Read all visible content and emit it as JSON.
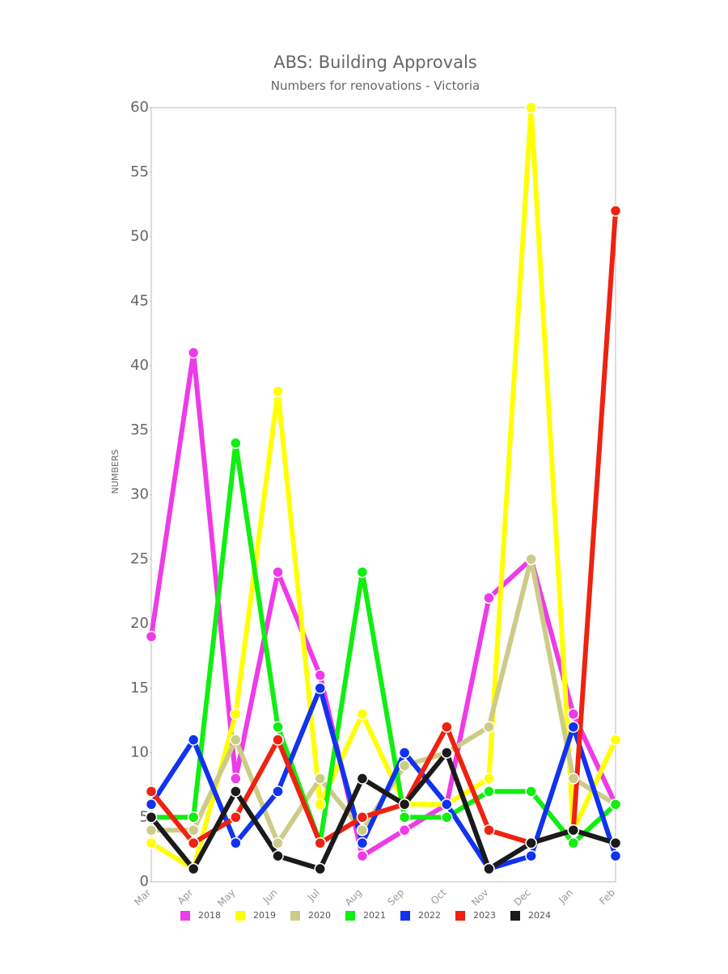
{
  "chart_data": {
    "type": "line",
    "title": "ABS: Building Approvals",
    "subtitle": "Numbers for renovations - Victoria",
    "y_label": "NUMBERS",
    "categories": [
      "Mar",
      "Apr",
      "May",
      "Jun",
      "Jul",
      "Aug",
      "Sep",
      "Oct",
      "Nov",
      "Dec",
      "Jan",
      "Feb"
    ],
    "ylim": [
      0,
      60
    ],
    "yticks": [
      0,
      5,
      10,
      15,
      20,
      25,
      30,
      35,
      40,
      45,
      50,
      55,
      60
    ],
    "grid": false,
    "legend": "bottom",
    "series": [
      {
        "name": "2018",
        "color": "#ee3be8",
        "values": [
          19,
          41,
          8,
          24,
          16,
          2,
          4,
          6,
          22,
          25,
          13,
          6
        ]
      },
      {
        "name": "2019",
        "color": "#ffff00",
        "values": [
          3,
          1,
          13,
          38,
          6,
          13,
          6,
          6,
          8,
          60,
          4,
          11
        ]
      },
      {
        "name": "2020",
        "color": "#cccc88",
        "values": [
          4,
          4,
          11,
          3,
          8,
          4,
          9,
          10,
          12,
          25,
          8,
          6
        ]
      },
      {
        "name": "2021",
        "color": "#11ee11",
        "values": [
          5,
          5,
          34,
          12,
          3,
          24,
          5,
          5,
          7,
          7,
          3,
          6
        ]
      },
      {
        "name": "2022",
        "color": "#1133ee",
        "values": [
          6,
          11,
          3,
          7,
          15,
          3,
          10,
          6,
          1,
          2,
          12,
          2
        ]
      },
      {
        "name": "2023",
        "color": "#ee2211",
        "values": [
          7,
          3,
          5,
          11,
          3,
          5,
          6,
          12,
          4,
          3,
          4,
          52
        ]
      },
      {
        "name": "2024",
        "color": "#1a1a1a",
        "values": [
          5,
          1,
          7,
          2,
          1,
          8,
          6,
          10,
          1,
          3,
          4,
          3
        ]
      }
    ]
  }
}
